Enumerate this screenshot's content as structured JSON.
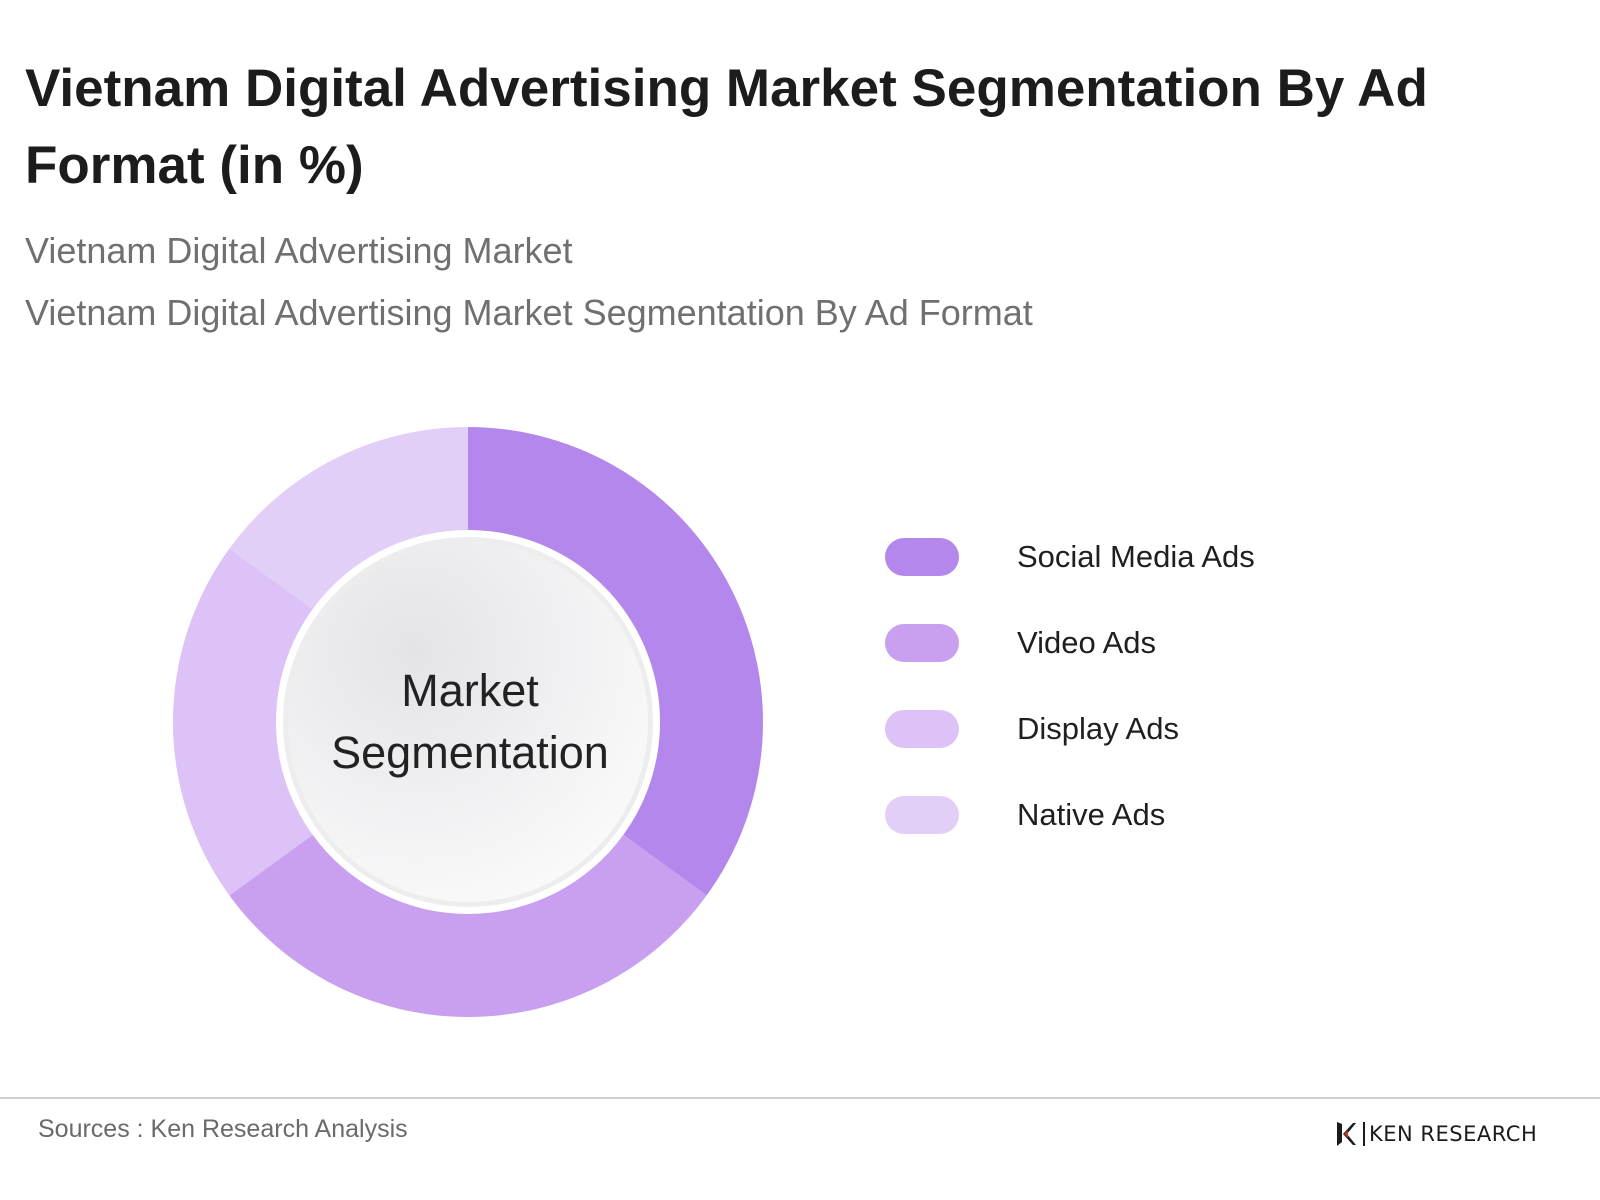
{
  "title": "Vietnam Digital Advertising Market Segmentation By Ad Format (in %)",
  "subtitle_1": "Vietnam Digital Advertising Market",
  "subtitle_2": "Vietnam Digital Advertising Market Segmentation By Ad Format",
  "center_label_line1": "Market",
  "center_label_line2": "Segmentation",
  "source": "Sources : Ken Research Analysis",
  "logo_text": "KEN RESEARCH",
  "chart_data": {
    "type": "pie",
    "style": "donut",
    "categories": [
      "Social Media Ads",
      "Video Ads",
      "Display Ads",
      "Native Ads"
    ],
    "values": [
      35,
      30,
      20,
      15
    ],
    "colors": [
      "#b387eb",
      "#c8a0ef",
      "#dcc2f6",
      "#e2cff8"
    ],
    "legend_position": "right"
  }
}
